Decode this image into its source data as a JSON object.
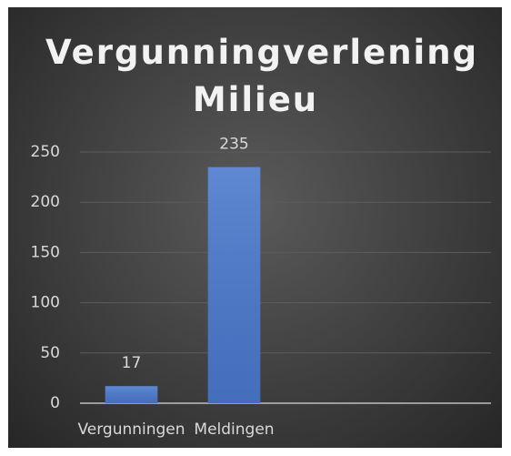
{
  "chart_data": {
    "type": "bar",
    "title": "Vergunningverlening Milieu",
    "categories": [
      "Vergunningen",
      "Meldingen",
      null,
      null
    ],
    "values": [
      17,
      235,
      null,
      null
    ],
    "color": "#4a78cc",
    "ylim": [
      0,
      250
    ],
    "yticks": [
      0,
      50,
      100,
      150,
      200,
      250
    ],
    "grid": true
  }
}
